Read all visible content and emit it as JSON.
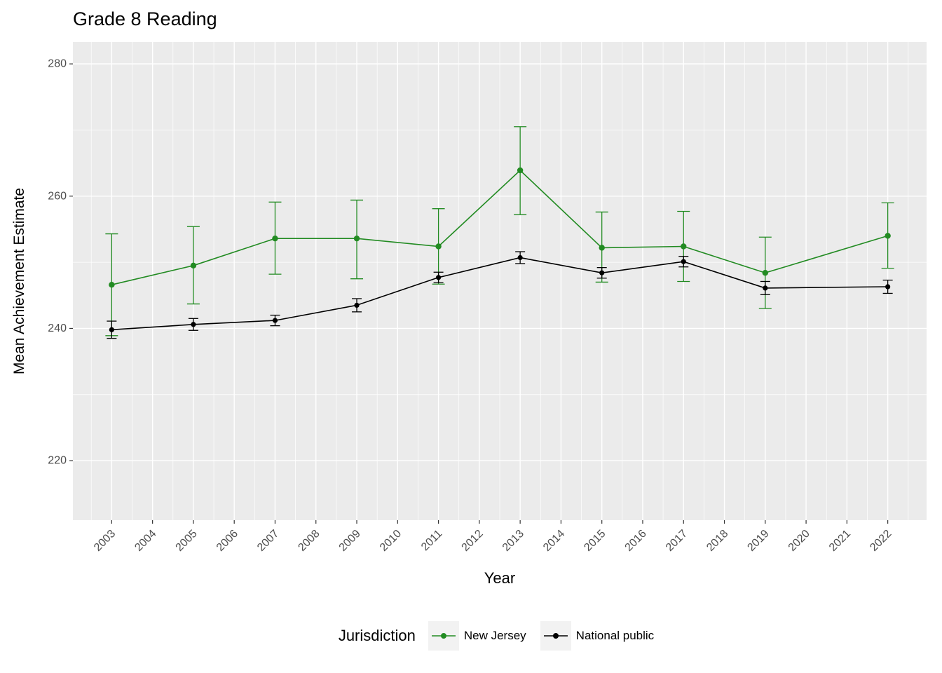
{
  "title": "Grade 8 Reading",
  "axes": {
    "x_label": "Year",
    "y_label": "Mean Achievement Estimate"
  },
  "legend": {
    "title": "Jurisdiction",
    "position": "bottom",
    "entries": [
      {
        "label": "New Jersey",
        "color": "#228B22"
      },
      {
        "label": "National public",
        "color": "#000000"
      }
    ]
  },
  "chart_data": {
    "type": "line",
    "title": "Grade 8 Reading",
    "xlabel": "Year",
    "ylabel": "Mean Achievement Estimate",
    "grid": true,
    "error_bars": true,
    "panel_color": "#EBEBEB",
    "gridline_color": "#FFFFFF",
    "tick_label_color": "#4D4D4D",
    "x": [
      2003,
      2005,
      2007,
      2009,
      2011,
      2013,
      2015,
      2017,
      2019,
      2022
    ],
    "x_ticks": [
      2003,
      2004,
      2005,
      2006,
      2007,
      2008,
      2009,
      2010,
      2011,
      2012,
      2013,
      2014,
      2015,
      2016,
      2017,
      2018,
      2019,
      2020,
      2021,
      2022
    ],
    "x_domain": [
      2002.05,
      2022.95
    ],
    "y_ticks": [
      220,
      240,
      260,
      280
    ],
    "y_domain": [
      211.0,
      283.3
    ],
    "series": [
      {
        "name": "New Jersey",
        "color": "#228B22",
        "values": [
          246.6,
          249.5,
          253.6,
          253.6,
          252.4,
          263.9,
          252.2,
          252.4,
          248.4,
          254.0
        ],
        "ci_low": [
          238.9,
          243.7,
          248.2,
          247.5,
          246.7,
          257.2,
          247.0,
          247.1,
          243.0,
          249.1
        ],
        "ci_high": [
          254.3,
          255.4,
          259.1,
          259.4,
          258.1,
          270.5,
          257.6,
          257.7,
          253.8,
          259.0
        ]
      },
      {
        "name": "National public",
        "color": "#000000",
        "values": [
          239.8,
          240.6,
          241.2,
          243.5,
          247.7,
          250.7,
          248.4,
          250.1,
          246.1,
          246.3
        ],
        "ci_low": [
          238.5,
          239.7,
          240.4,
          242.5,
          246.9,
          249.8,
          247.6,
          249.3,
          245.1,
          245.3
        ],
        "ci_high": [
          241.1,
          241.5,
          242.0,
          244.5,
          248.5,
          251.6,
          249.2,
          250.9,
          247.1,
          247.3
        ]
      }
    ]
  }
}
